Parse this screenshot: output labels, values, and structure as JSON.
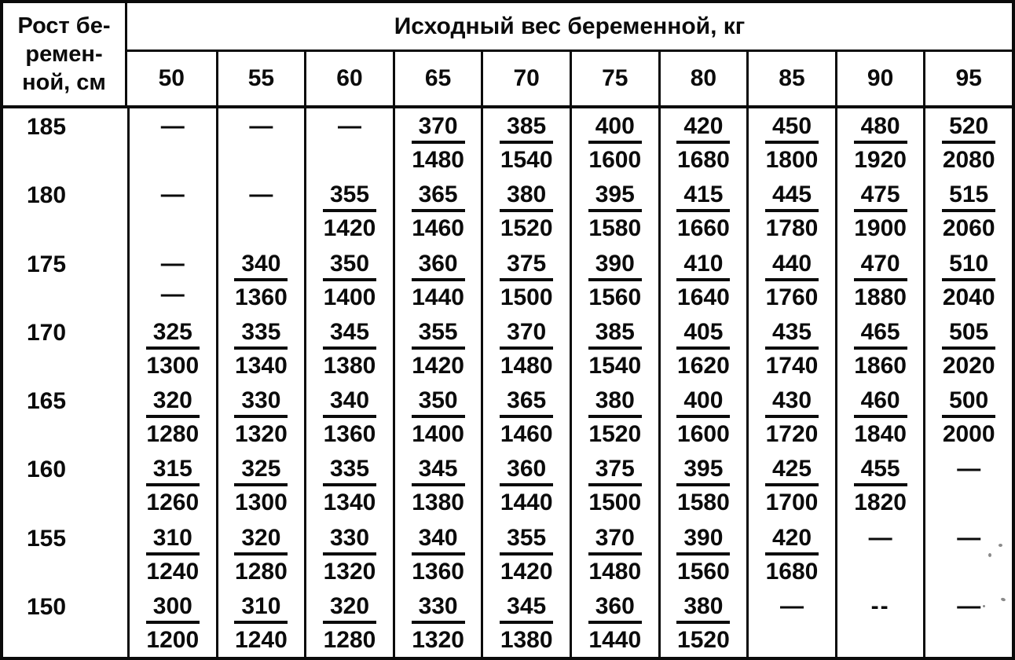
{
  "table": {
    "header": {
      "row_label_lines": [
        "Рост бе-",
        "ремен-",
        "ной, см"
      ],
      "group_label": "Исходный вес беременной, кг",
      "weights": [
        "50",
        "55",
        "60",
        "65",
        "70",
        "75",
        "80",
        "85",
        "90",
        "95"
      ]
    },
    "rows": [
      {
        "height": "185",
        "cells": [
          [
            "—",
            ""
          ],
          [
            "—",
            ""
          ],
          [
            "—",
            ""
          ],
          [
            "370",
            "1480"
          ],
          [
            "385",
            "1540"
          ],
          [
            "400",
            "1600"
          ],
          [
            "420",
            "1680"
          ],
          [
            "450",
            "1800"
          ],
          [
            "480",
            "1920"
          ],
          [
            "520",
            "2080"
          ]
        ]
      },
      {
        "height": "180",
        "cells": [
          [
            "—",
            ""
          ],
          [
            "—",
            ""
          ],
          [
            "355",
            "1420"
          ],
          [
            "365",
            "1460"
          ],
          [
            "380",
            "1520"
          ],
          [
            "395",
            "1580"
          ],
          [
            "415",
            "1660"
          ],
          [
            "445",
            "1780"
          ],
          [
            "475",
            "1900"
          ],
          [
            "515",
            "2060"
          ]
        ]
      },
      {
        "height": "175",
        "cells": [
          [
            "—",
            "—"
          ],
          [
            "340",
            "1360"
          ],
          [
            "350",
            "1400"
          ],
          [
            "360",
            "1440"
          ],
          [
            "375",
            "1500"
          ],
          [
            "390",
            "1560"
          ],
          [
            "410",
            "1640"
          ],
          [
            "440",
            "1760"
          ],
          [
            "470",
            "1880"
          ],
          [
            "510",
            "2040"
          ]
        ]
      },
      {
        "height": "170",
        "cells": [
          [
            "325",
            "1300"
          ],
          [
            "335",
            "1340"
          ],
          [
            "345",
            "1380"
          ],
          [
            "355",
            "1420"
          ],
          [
            "370",
            "1480"
          ],
          [
            "385",
            "1540"
          ],
          [
            "405",
            "1620"
          ],
          [
            "435",
            "1740"
          ],
          [
            "465",
            "1860"
          ],
          [
            "505",
            "2020"
          ]
        ]
      },
      {
        "height": "165",
        "cells": [
          [
            "320",
            "1280"
          ],
          [
            "330",
            "1320"
          ],
          [
            "340",
            "1360"
          ],
          [
            "350",
            "1400"
          ],
          [
            "365",
            "1460"
          ],
          [
            "380",
            "1520"
          ],
          [
            "400",
            "1600"
          ],
          [
            "430",
            "1720"
          ],
          [
            "460",
            "1840"
          ],
          [
            "500",
            "2000"
          ]
        ]
      },
      {
        "height": "160",
        "cells": [
          [
            "315",
            "1260"
          ],
          [
            "325",
            "1300"
          ],
          [
            "335",
            "1340"
          ],
          [
            "345",
            "1380"
          ],
          [
            "360",
            "1440"
          ],
          [
            "375",
            "1500"
          ],
          [
            "395",
            "1580"
          ],
          [
            "425",
            "1700"
          ],
          [
            "455",
            "1820"
          ],
          [
            "—",
            ""
          ]
        ]
      },
      {
        "height": "155",
        "cells": [
          [
            "310",
            "1240"
          ],
          [
            "320",
            "1280"
          ],
          [
            "330",
            "1320"
          ],
          [
            "340",
            "1360"
          ],
          [
            "355",
            "1420"
          ],
          [
            "370",
            "1480"
          ],
          [
            "390",
            "1560"
          ],
          [
            "420",
            "1680"
          ],
          [
            "—",
            ""
          ],
          [
            "—",
            ""
          ]
        ]
      },
      {
        "height": "150",
        "cells": [
          [
            "300",
            "1200"
          ],
          [
            "310",
            "1240"
          ],
          [
            "320",
            "1280"
          ],
          [
            "330",
            "1320"
          ],
          [
            "345",
            "1380"
          ],
          [
            "360",
            "1440"
          ],
          [
            "380",
            "1520"
          ],
          [
            "—",
            ""
          ],
          [
            "--",
            ""
          ],
          [
            "—",
            ""
          ]
        ]
      }
    ],
    "colors": {
      "ink": "#0b0b0b",
      "paper": "#ffffff"
    }
  }
}
